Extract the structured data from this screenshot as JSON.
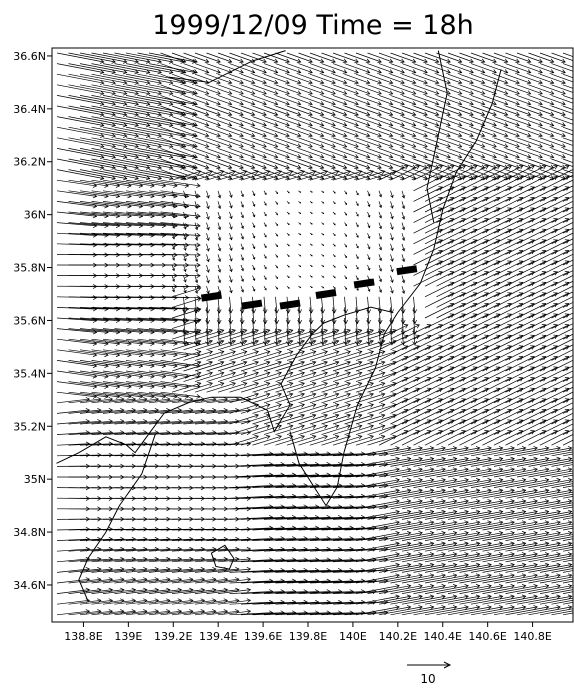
{
  "chart_data": {
    "type": "vector-field",
    "title": "1999/12/09 Time = 18h",
    "xlim": [
      138.66,
      140.98
    ],
    "ylim": [
      34.46,
      36.63
    ],
    "x_ticks": [
      {
        "value": 138.8,
        "label": "138.8E"
      },
      {
        "value": 139.0,
        "label": "139E"
      },
      {
        "value": 139.2,
        "label": "139.2E"
      },
      {
        "value": 139.4,
        "label": "139.4E"
      },
      {
        "value": 139.6,
        "label": "139.6E"
      },
      {
        "value": 139.8,
        "label": "139.8E"
      },
      {
        "value": 140.0,
        "label": "140E"
      },
      {
        "value": 140.2,
        "label": "140.2E"
      },
      {
        "value": 140.4,
        "label": "140.4E"
      },
      {
        "value": 140.6,
        "label": "140.6E"
      },
      {
        "value": 140.8,
        "label": "140.8E"
      }
    ],
    "y_ticks": [
      {
        "value": 34.6,
        "label": "34.6N"
      },
      {
        "value": 34.8,
        "label": "34.8N"
      },
      {
        "value": 35.0,
        "label": "35N"
      },
      {
        "value": 35.2,
        "label": "35.2N"
      },
      {
        "value": 35.4,
        "label": "35.4N"
      },
      {
        "value": 35.6,
        "label": "35.6N"
      },
      {
        "value": 35.8,
        "label": "35.8N"
      },
      {
        "value": 36.0,
        "label": "36N"
      },
      {
        "value": 36.2,
        "label": "36.2N"
      },
      {
        "value": 36.4,
        "label": "36.4N"
      },
      {
        "value": 36.6,
        "label": "36.6N"
      }
    ],
    "grid": false,
    "reference_vector": {
      "value": 10,
      "label": "10"
    },
    "front_line": {
      "style": "thick dashed",
      "points": [
        [
          139.37,
          35.69
        ],
        [
          139.55,
          35.66
        ],
        [
          139.72,
          35.66
        ],
        [
          139.88,
          35.7
        ],
        [
          140.05,
          35.74
        ],
        [
          140.24,
          35.79
        ]
      ]
    },
    "coastlines": [
      [
        [
          138.68,
          35.06
        ],
        [
          138.78,
          35.1
        ],
        [
          138.9,
          35.16
        ],
        [
          138.99,
          35.13
        ],
        [
          139.03,
          35.1
        ],
        [
          139.09,
          35.17
        ],
        [
          139.16,
          35.25
        ],
        [
          139.27,
          35.29
        ],
        [
          139.37,
          35.31
        ],
        [
          139.5,
          35.31
        ],
        [
          139.62,
          35.26
        ],
        [
          139.65,
          35.18
        ],
        [
          139.72,
          35.28
        ],
        [
          139.68,
          35.36
        ],
        [
          139.75,
          35.47
        ],
        [
          139.82,
          35.55
        ],
        [
          139.87,
          35.59
        ],
        [
          139.96,
          35.62
        ],
        [
          140.08,
          35.65
        ],
        [
          140.18,
          35.63
        ]
      ],
      [
        [
          139.72,
          35.18
        ],
        [
          139.76,
          35.06
        ],
        [
          139.82,
          34.98
        ],
        [
          139.88,
          34.9
        ],
        [
          139.93,
          34.97
        ],
        [
          139.96,
          35.1
        ],
        [
          140.02,
          35.28
        ],
        [
          140.1,
          35.42
        ],
        [
          140.14,
          35.55
        ],
        [
          140.2,
          35.63
        ]
      ],
      [
        [
          139.12,
          35.17
        ],
        [
          139.06,
          35.02
        ],
        [
          138.96,
          34.9
        ],
        [
          138.9,
          34.8
        ],
        [
          138.82,
          34.7
        ],
        [
          138.78,
          34.62
        ],
        [
          138.82,
          34.54
        ]
      ],
      [
        [
          140.2,
          35.63
        ],
        [
          140.3,
          35.74
        ],
        [
          140.36,
          35.87
        ],
        [
          140.4,
          36.02
        ],
        [
          140.46,
          36.16
        ],
        [
          140.55,
          36.28
        ],
        [
          140.62,
          36.42
        ],
        [
          140.66,
          36.55
        ]
      ],
      [
        [
          140.38,
          36.62
        ],
        [
          140.42,
          36.46
        ],
        [
          140.38,
          36.3
        ],
        [
          140.33,
          36.1
        ],
        [
          140.36,
          35.97
        ]
      ],
      [
        [
          139.18,
          36.52
        ],
        [
          139.36,
          36.5
        ],
        [
          139.55,
          36.58
        ],
        [
          139.7,
          36.62
        ]
      ]
    ],
    "islands": [
      [
        [
          139.37,
          34.72
        ],
        [
          139.43,
          34.75
        ],
        [
          139.47,
          34.7
        ],
        [
          139.45,
          34.66
        ],
        [
          139.39,
          34.67
        ],
        [
          139.37,
          34.72
        ]
      ]
    ]
  }
}
